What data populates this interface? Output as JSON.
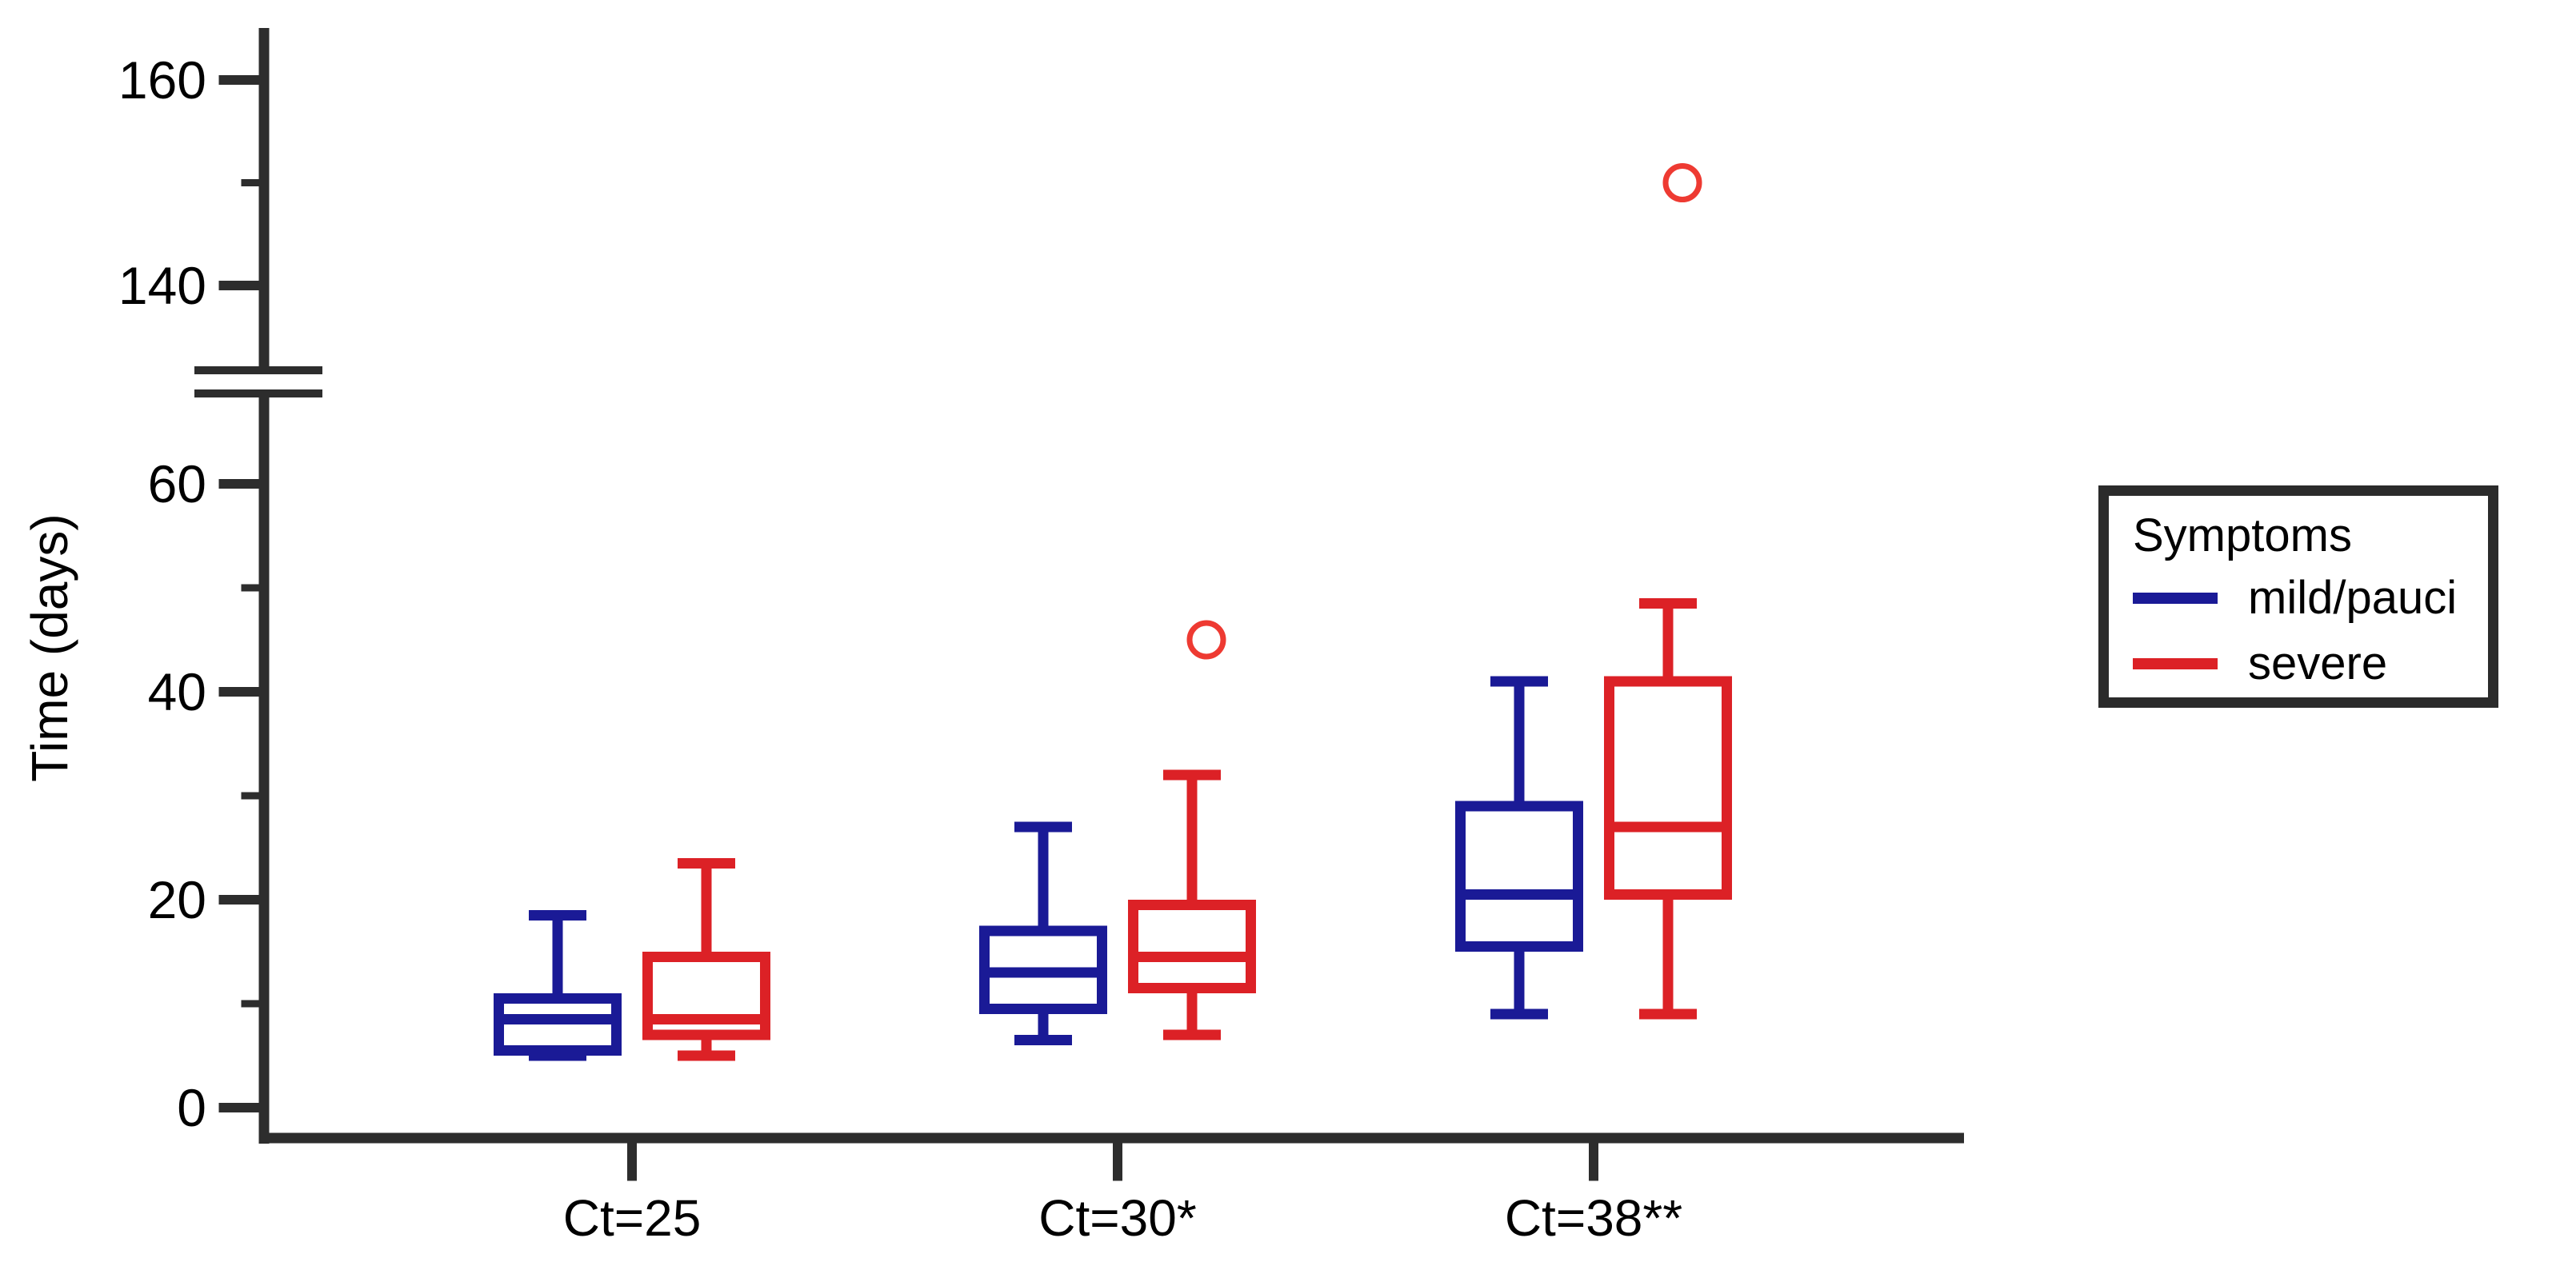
{
  "chart_data": {
    "type": "boxplot",
    "title": "",
    "xlabel": "",
    "ylabel": "Time (days)",
    "axis_color": "#2d2d2d",
    "text_color": "#000000",
    "y_axis": {
      "broken": true,
      "lower_segment_range": [
        0,
        70
      ],
      "upper_segment_range": [
        130,
        165
      ],
      "ticks": [
        {
          "value": 160,
          "label": "160",
          "major": true
        },
        {
          "value": 150,
          "label": "",
          "major": false
        },
        {
          "value": 140,
          "label": "140",
          "major": true
        },
        {
          "value": 60,
          "label": "60",
          "major": true
        },
        {
          "value": 50,
          "label": "",
          "major": false
        },
        {
          "value": 40,
          "label": "40",
          "major": true
        },
        {
          "value": 30,
          "label": "",
          "major": false
        },
        {
          "value": 20,
          "label": "20",
          "major": true
        },
        {
          "value": 10,
          "label": "",
          "major": false
        },
        {
          "value": 0,
          "label": "0",
          "major": true
        }
      ]
    },
    "categories": [
      {
        "label": "Ct=25"
      },
      {
        "label": "Ct=30*"
      },
      {
        "label": "Ct=38**"
      }
    ],
    "legend": {
      "title": "Symptoms",
      "position": "right"
    },
    "series": [
      {
        "name": "mild/pauci",
        "color": "#1a1a96",
        "boxes": [
          {
            "category": "Ct=25",
            "whisker_low": 5,
            "q1": 5.5,
            "median": 8.5,
            "q3": 10.5,
            "whisker_high": 18.5,
            "outliers": []
          },
          {
            "category": "Ct=30*",
            "whisker_low": 6.5,
            "q1": 9.5,
            "median": 13,
            "q3": 17,
            "whisker_high": 27,
            "outliers": []
          },
          {
            "category": "Ct=38**",
            "whisker_low": 9,
            "q1": 15.5,
            "median": 20.5,
            "q3": 29,
            "whisker_high": 41,
            "outliers": []
          }
        ]
      },
      {
        "name": "severe",
        "color": "#dc2126",
        "outlier_color": "#ee3a32",
        "boxes": [
          {
            "category": "Ct=25",
            "whisker_low": 5,
            "q1": 7,
            "median": 8.5,
            "q3": 14.5,
            "whisker_high": 23.5,
            "outliers": []
          },
          {
            "category": "Ct=30*",
            "whisker_low": 7,
            "q1": 11.5,
            "median": 14.5,
            "q3": 19.5,
            "whisker_high": 32,
            "outliers": [
              45
            ]
          },
          {
            "category": "Ct=38**",
            "whisker_low": 9,
            "q1": 20.5,
            "median": 27,
            "q3": 41,
            "whisker_high": 48.5,
            "outliers": [
              150
            ]
          }
        ]
      }
    ]
  }
}
